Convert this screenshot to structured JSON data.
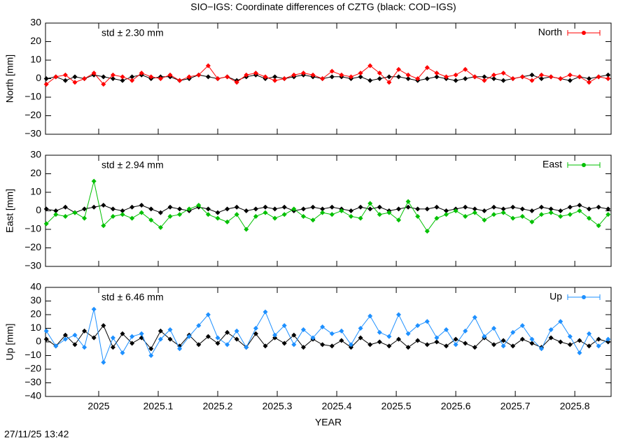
{
  "title": "SIO−IGS: Coordinate differences of CZTG (black: COD−IGS)",
  "timestamp": "27/11/25 13:42",
  "chart_data": [
    {
      "type": "line",
      "ylabel": "North [mm]",
      "annotation": "std ± 2.30 mm",
      "legend": "top right",
      "xlim": [
        2024.9106,
        2025.861
      ],
      "ylim": [
        -30,
        30
      ],
      "yticks": [
        {
          "value": -30,
          "label": "−30"
        },
        {
          "value": -20,
          "label": "−20"
        },
        {
          "value": -10,
          "label": "−10"
        },
        0,
        10,
        20,
        30
      ],
      "x": [
        2024.912,
        2024.928,
        2024.944,
        2024.96,
        2024.976,
        2024.992,
        2025.008,
        2025.024,
        2025.04,
        2025.056,
        2025.072,
        2025.088,
        2025.104,
        2025.12,
        2025.136,
        2025.152,
        2025.168,
        2025.184,
        2025.2,
        2025.216,
        2025.232,
        2025.248,
        2025.264,
        2025.28,
        2025.296,
        2025.312,
        2025.328,
        2025.344,
        2025.36,
        2025.376,
        2025.392,
        2025.408,
        2025.424,
        2025.44,
        2025.456,
        2025.472,
        2025.488,
        2025.504,
        2025.52,
        2025.536,
        2025.552,
        2025.568,
        2025.584,
        2025.6,
        2025.616,
        2025.632,
        2025.648,
        2025.664,
        2025.68,
        2025.696,
        2025.712,
        2025.728,
        2025.744,
        2025.76,
        2025.776,
        2025.792,
        2025.808,
        2025.824,
        2025.84,
        2025.856
      ],
      "series": [
        {
          "color": "#000000",
          "values": [
            0,
            1,
            -1,
            1,
            0,
            2,
            1,
            0,
            -1,
            1,
            2,
            0,
            1,
            1,
            -1,
            0,
            2,
            1,
            0,
            1,
            -1,
            1,
            2,
            0,
            1,
            0,
            1,
            2,
            1,
            0,
            1,
            1,
            0,
            1,
            -1,
            0,
            1,
            1,
            0,
            -1,
            0,
            1,
            0,
            -1,
            0,
            1,
            1,
            0,
            -1,
            0,
            1,
            2,
            0,
            1,
            0,
            -1,
            1,
            0,
            1,
            2
          ]
        },
        {
          "name": "North",
          "color": "#ff0000",
          "values": [
            -3,
            1,
            2,
            -2,
            0,
            3,
            -3,
            2,
            1,
            -1,
            3,
            1,
            0,
            2,
            -1,
            1,
            2,
            7,
            0,
            1,
            -2,
            2,
            3,
            1,
            -1,
            0,
            2,
            3,
            2,
            0,
            4,
            2,
            1,
            3,
            7,
            3,
            -2,
            5,
            2,
            0,
            6,
            3,
            1,
            2,
            5,
            1,
            -1,
            2,
            3,
            0,
            1,
            -1,
            2,
            1,
            0,
            2,
            1,
            -2,
            1,
            0
          ]
        }
      ]
    },
    {
      "type": "line",
      "ylabel": "East [mm]",
      "annotation": "std ± 2.94 mm",
      "legend": "top right",
      "xlim": [
        2024.9106,
        2025.861
      ],
      "ylim": [
        -30,
        30
      ],
      "yticks": [
        {
          "value": -30,
          "label": "−30"
        },
        {
          "value": -20,
          "label": "−20"
        },
        {
          "value": -10,
          "label": "−10"
        },
        0,
        10,
        20,
        30
      ],
      "x": [
        2024.912,
        2024.928,
        2024.944,
        2024.96,
        2024.976,
        2024.992,
        2025.008,
        2025.024,
        2025.04,
        2025.056,
        2025.072,
        2025.088,
        2025.104,
        2025.12,
        2025.136,
        2025.152,
        2025.168,
        2025.184,
        2025.2,
        2025.216,
        2025.232,
        2025.248,
        2025.264,
        2025.28,
        2025.296,
        2025.312,
        2025.328,
        2025.344,
        2025.36,
        2025.376,
        2025.392,
        2025.408,
        2025.424,
        2025.44,
        2025.456,
        2025.472,
        2025.488,
        2025.504,
        2025.52,
        2025.536,
        2025.552,
        2025.568,
        2025.584,
        2025.6,
        2025.616,
        2025.632,
        2025.648,
        2025.664,
        2025.68,
        2025.696,
        2025.712,
        2025.728,
        2025.744,
        2025.76,
        2025.776,
        2025.792,
        2025.808,
        2025.824,
        2025.84,
        2025.856
      ],
      "series": [
        {
          "color": "#000000",
          "values": [
            1,
            0,
            2,
            -1,
            1,
            2,
            3,
            1,
            0,
            2,
            3,
            1,
            -1,
            2,
            1,
            0,
            2,
            1,
            -1,
            1,
            2,
            0,
            1,
            2,
            1,
            2,
            0,
            1,
            2,
            1,
            2,
            1,
            0,
            2,
            1,
            2,
            0,
            1,
            2,
            1,
            1,
            2,
            0,
            1,
            2,
            1,
            0,
            2,
            1,
            2,
            1,
            0,
            2,
            1,
            0,
            2,
            3,
            1,
            2,
            1
          ]
        },
        {
          "name": "East",
          "color": "#00c000",
          "values": [
            -7,
            -2,
            -3,
            -1,
            -4,
            16,
            -8,
            -3,
            -2,
            -4,
            -1,
            -5,
            -9,
            -3,
            -2,
            1,
            3,
            -2,
            -4,
            -6,
            -2,
            -10,
            -3,
            -1,
            -4,
            -2,
            1,
            -3,
            -5,
            -1,
            -2,
            0,
            -3,
            -4,
            4,
            -2,
            -1,
            -5,
            5,
            -3,
            -11,
            -4,
            -2,
            0,
            -3,
            -1,
            -5,
            -2,
            -1,
            -4,
            -3,
            -6,
            -2,
            -1,
            -3,
            -2,
            0,
            -4,
            -8,
            -2
          ]
        }
      ]
    },
    {
      "type": "line",
      "ylabel": "Up [mm]",
      "annotation": "std ± 6.46 mm",
      "legend": "top right",
      "xlabel": "YEAR",
      "xlim": [
        2024.9106,
        2025.861
      ],
      "ylim": [
        -40,
        40
      ],
      "xticks": [
        2025,
        2025.1,
        2025.2,
        2025.3,
        2025.4,
        2025.5,
        2025.6,
        2025.7,
        2025.8
      ],
      "yticks": [
        {
          "value": -40,
          "label": "−40"
        },
        {
          "value": -30,
          "label": "−30"
        },
        {
          "value": -20,
          "label": "−20"
        },
        {
          "value": -10,
          "label": "−10"
        },
        0,
        10,
        20,
        30,
        40
      ],
      "x": [
        2024.912,
        2024.928,
        2024.944,
        2024.96,
        2024.976,
        2024.992,
        2025.008,
        2025.024,
        2025.04,
        2025.056,
        2025.072,
        2025.088,
        2025.104,
        2025.12,
        2025.136,
        2025.152,
        2025.168,
        2025.184,
        2025.2,
        2025.216,
        2025.232,
        2025.248,
        2025.264,
        2025.28,
        2025.296,
        2025.312,
        2025.328,
        2025.344,
        2025.36,
        2025.376,
        2025.392,
        2025.408,
        2025.424,
        2025.44,
        2025.456,
        2025.472,
        2025.488,
        2025.504,
        2025.52,
        2025.536,
        2025.552,
        2025.568,
        2025.584,
        2025.6,
        2025.616,
        2025.632,
        2025.648,
        2025.664,
        2025.68,
        2025.696,
        2025.712,
        2025.728,
        2025.744,
        2025.76,
        2025.776,
        2025.792,
        2025.808,
        2025.824,
        2025.84,
        2025.856
      ],
      "series": [
        {
          "color": "#000000",
          "values": [
            2,
            -3,
            5,
            -2,
            8,
            3,
            12,
            -4,
            6,
            -1,
            3,
            -5,
            8,
            2,
            -3,
            5,
            -2,
            4,
            -1,
            7,
            2,
            -4,
            6,
            -3,
            3,
            -1,
            5,
            -4,
            2,
            -2,
            -3,
            1,
            -4,
            3,
            -2,
            0,
            -3,
            2,
            -4,
            1,
            -2,
            0,
            -3,
            2,
            -1,
            -4,
            3,
            -2,
            1,
            -3,
            2,
            -1,
            -4,
            3,
            0,
            -2,
            1,
            -3,
            2,
            0
          ]
        },
        {
          "name": "Up",
          "color": "#1e90ff",
          "values": [
            8,
            -3,
            2,
            5,
            -4,
            24,
            -15,
            3,
            -8,
            4,
            6,
            -10,
            2,
            9,
            -5,
            4,
            12,
            20,
            3,
            -2,
            8,
            -4,
            10,
            22,
            5,
            12,
            -2,
            9,
            3,
            11,
            6,
            8,
            -2,
            10,
            19,
            7,
            4,
            20,
            6,
            12,
            15,
            3,
            9,
            -2,
            8,
            18,
            4,
            10,
            -3,
            7,
            12,
            2,
            -5,
            9,
            15,
            4,
            -8,
            6,
            -3,
            2
          ]
        }
      ]
    }
  ]
}
